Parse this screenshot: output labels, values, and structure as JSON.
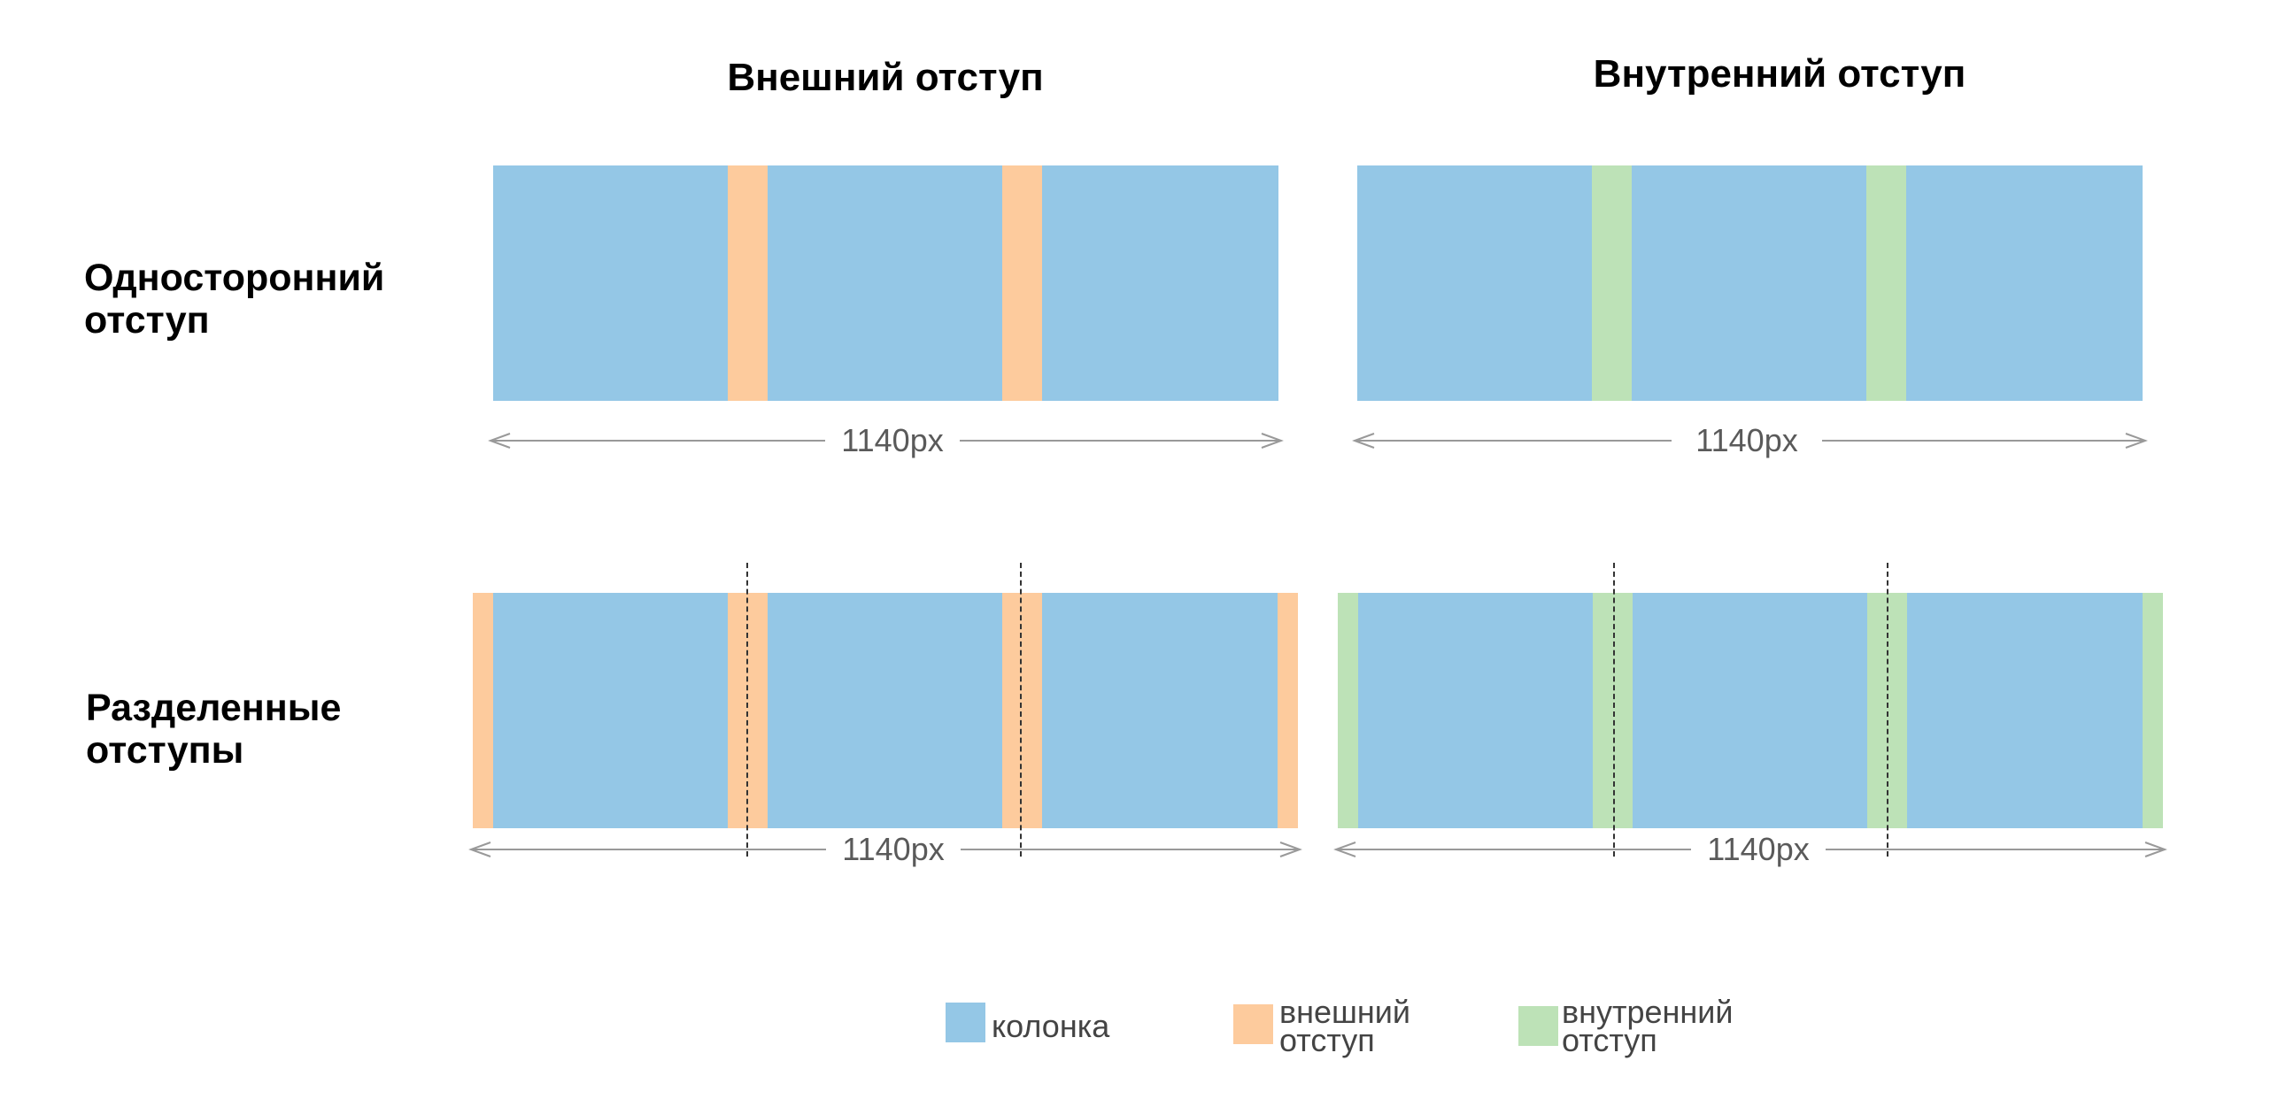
{
  "columns": {
    "margin": "Внешний отступ",
    "padding": "Внутренний отступ"
  },
  "rows": {
    "one_sided": {
      "line1": "Односторонний",
      "line2": "отступ"
    },
    "split": {
      "line1": "Разделенные",
      "line2": "отступы"
    }
  },
  "measure_label": "1140px",
  "legend": {
    "column": "колонка",
    "margin": {
      "line1": "внешний",
      "line2": "отступ"
    },
    "padding": {
      "line1": "внутренний",
      "line2": "отступ"
    }
  },
  "colors": {
    "column": "#94c7e6",
    "margin": "#fdcb9d",
    "padding": "#bde2b7"
  }
}
